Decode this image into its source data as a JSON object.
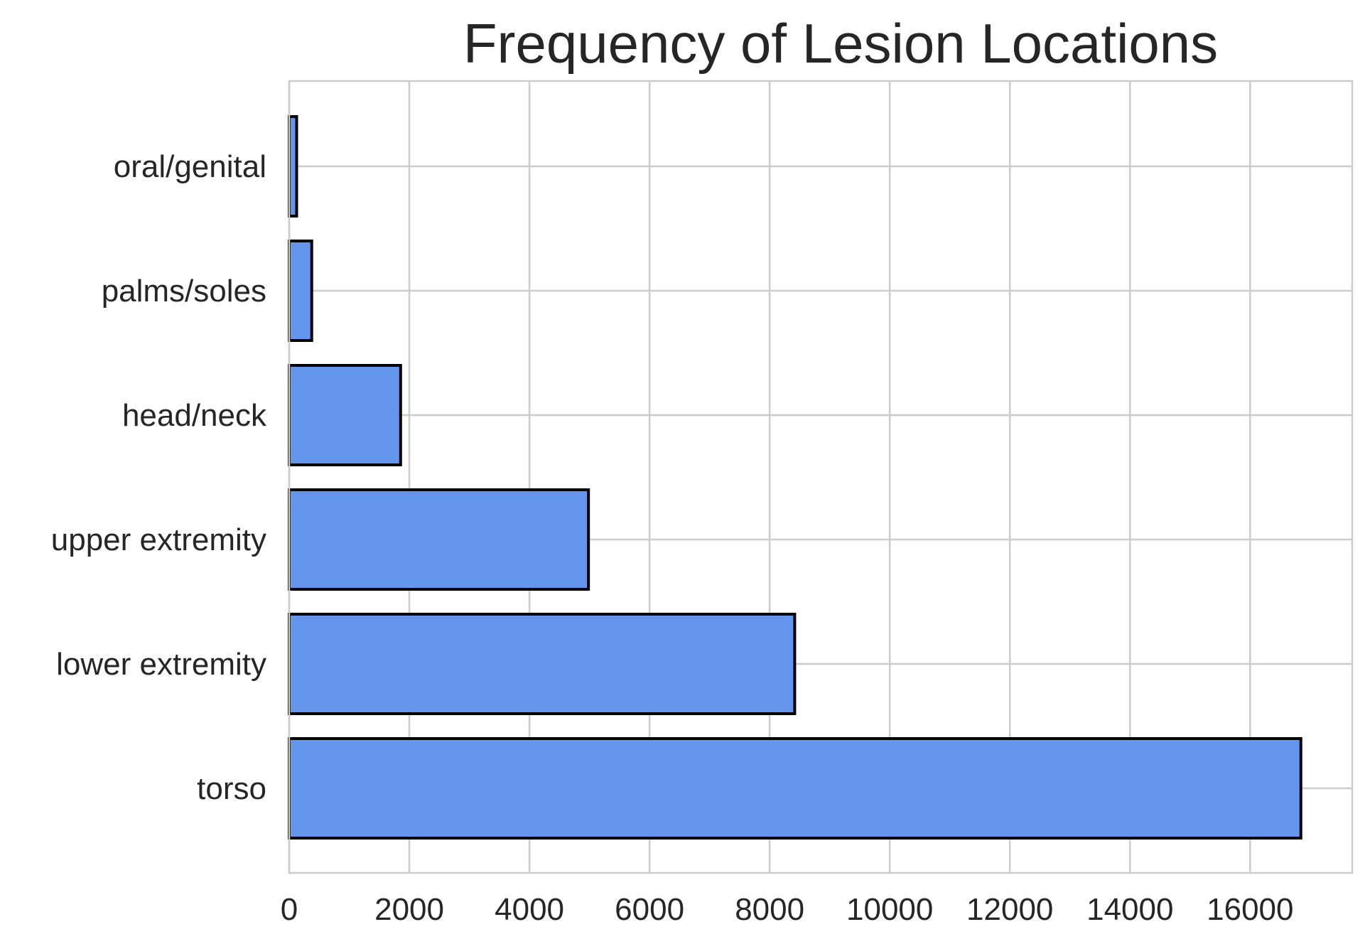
{
  "chart_data": {
    "type": "bar",
    "orientation": "horizontal",
    "title": "Frequency of Lesion Locations",
    "xlabel": "",
    "ylabel": "",
    "categories": [
      "torso",
      "lower extremity",
      "upper extremity",
      "head/neck",
      "palms/soles",
      "oral/genital"
    ],
    "values": [
      16845,
      8417,
      4983,
      1855,
      375,
      124
    ],
    "xlim": [
      0,
      17700
    ],
    "xticks": [
      0,
      2000,
      4000,
      6000,
      8000,
      10000,
      12000,
      14000,
      16000
    ],
    "xtick_labels": [
      "0",
      "2000",
      "4000",
      "6000",
      "8000",
      "10000",
      "12000",
      "14000",
      "16000"
    ],
    "grid": true,
    "bar_color": "#6495ED",
    "edge_color": "#000000",
    "grid_color": "#cccccc",
    "text_color": "#262626"
  }
}
